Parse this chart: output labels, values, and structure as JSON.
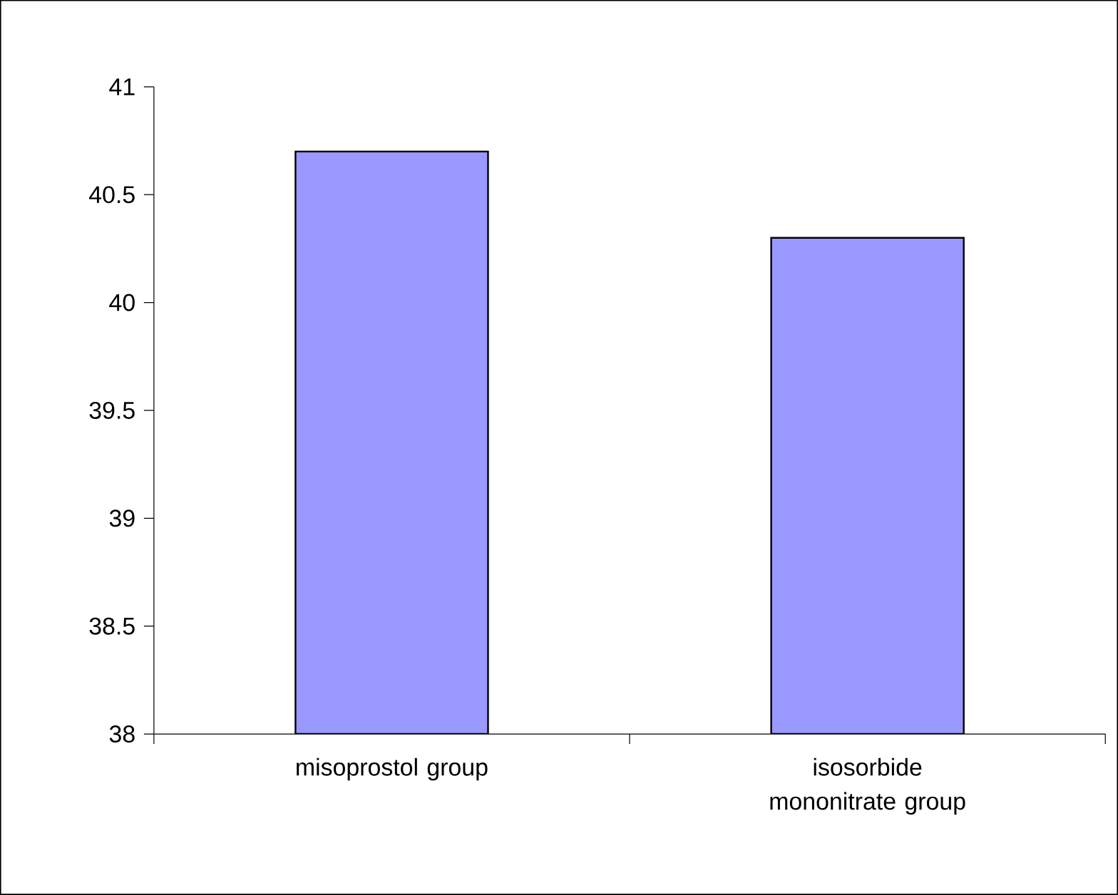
{
  "chart_data": {
    "type": "bar",
    "categories": [
      "misoprostol group",
      "isosorbide mononitrate group"
    ],
    "values": [
      40.7,
      40.3
    ],
    "color": "#9999ff",
    "ylim": [
      38,
      41
    ],
    "yticks": [
      38,
      38.5,
      39,
      39.5,
      40,
      40.5,
      41
    ],
    "grid": false
  }
}
